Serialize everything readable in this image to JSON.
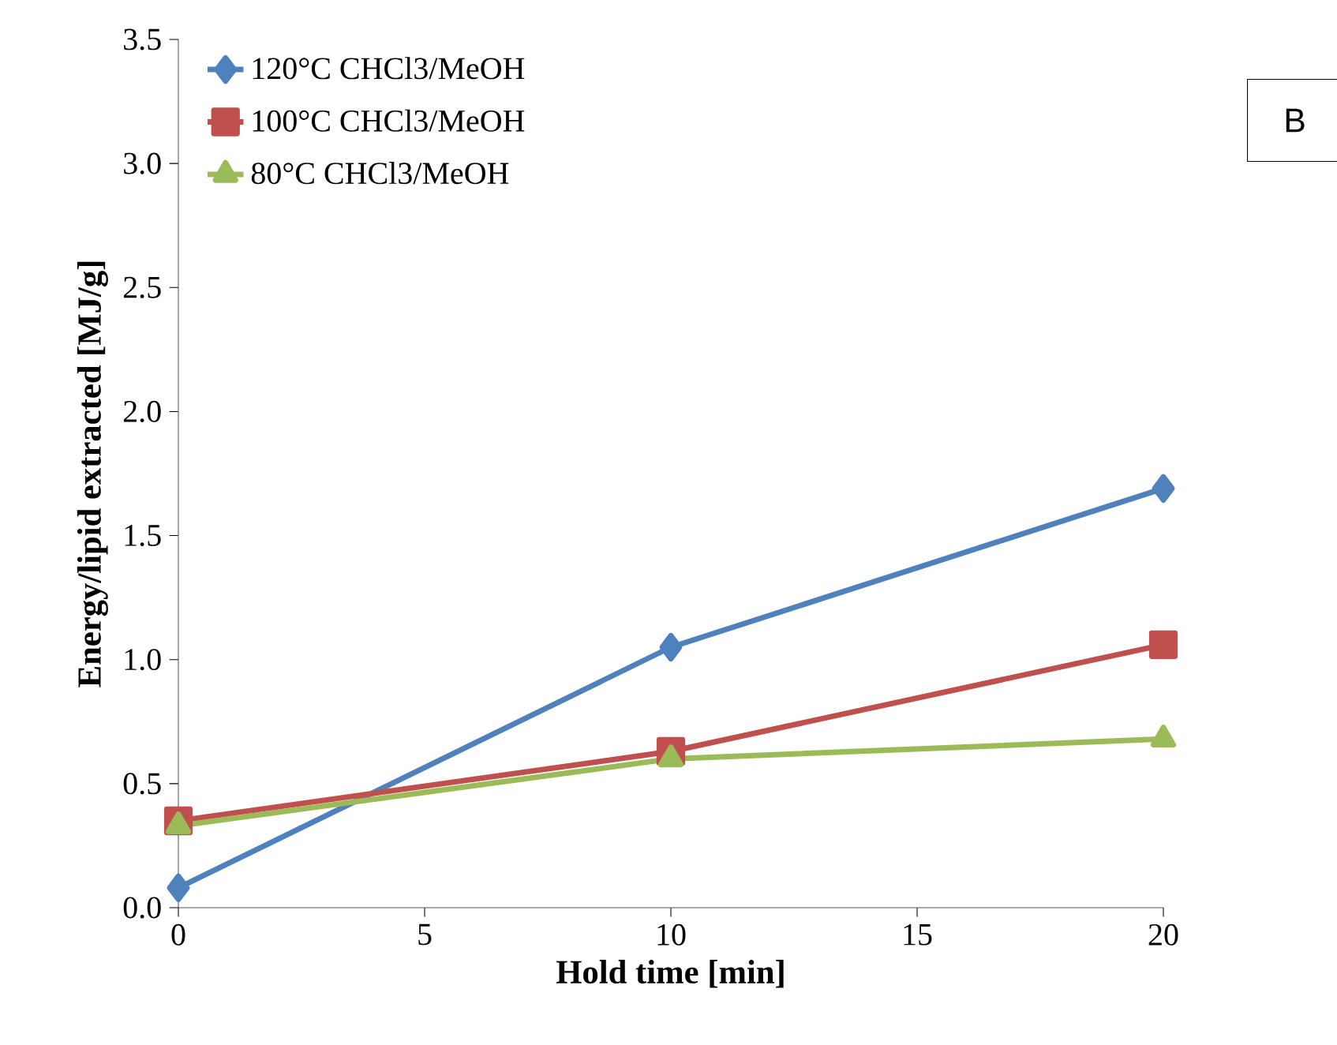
{
  "chart_data": {
    "type": "line",
    "xlabel": "Hold time [min]",
    "ylabel": "Energy/lipid extracted [MJ/g]",
    "annotations": [
      "B"
    ],
    "x": [
      0,
      10,
      20
    ],
    "series": [
      {
        "name": "120°C CHCl3/MeOH",
        "color": "#4f81bd",
        "marker": "diamond",
        "values": [
          0.08,
          1.05,
          1.69
        ]
      },
      {
        "name": "100°C CHCl3/MeOH",
        "color": "#c0504d",
        "marker": "square",
        "values": [
          0.35,
          0.63,
          1.06
        ]
      },
      {
        "name": "80°C CHCl3/MeOH",
        "color": "#9bbb59",
        "marker": "triangle",
        "values": [
          0.33,
          0.6,
          0.68
        ]
      }
    ],
    "xlim": [
      0,
      20
    ],
    "xticks": [
      0,
      5,
      10,
      15,
      20
    ],
    "ylim": [
      0,
      3.5
    ],
    "yticks": [
      {
        "value": 0,
        "label": "0.0"
      },
      {
        "value": 0.5,
        "label": "0.5"
      },
      {
        "value": 1,
        "label": "1.0"
      },
      {
        "value": 1.5,
        "label": "1.5"
      },
      {
        "value": 2,
        "label": "2.0"
      },
      {
        "value": 2.5,
        "label": "2.5"
      },
      {
        "value": 3,
        "label": "3.0"
      },
      {
        "value": 3.5,
        "label": "3.5"
      }
    ],
    "grid": false,
    "legend": "top left",
    "line_style": "solid"
  }
}
